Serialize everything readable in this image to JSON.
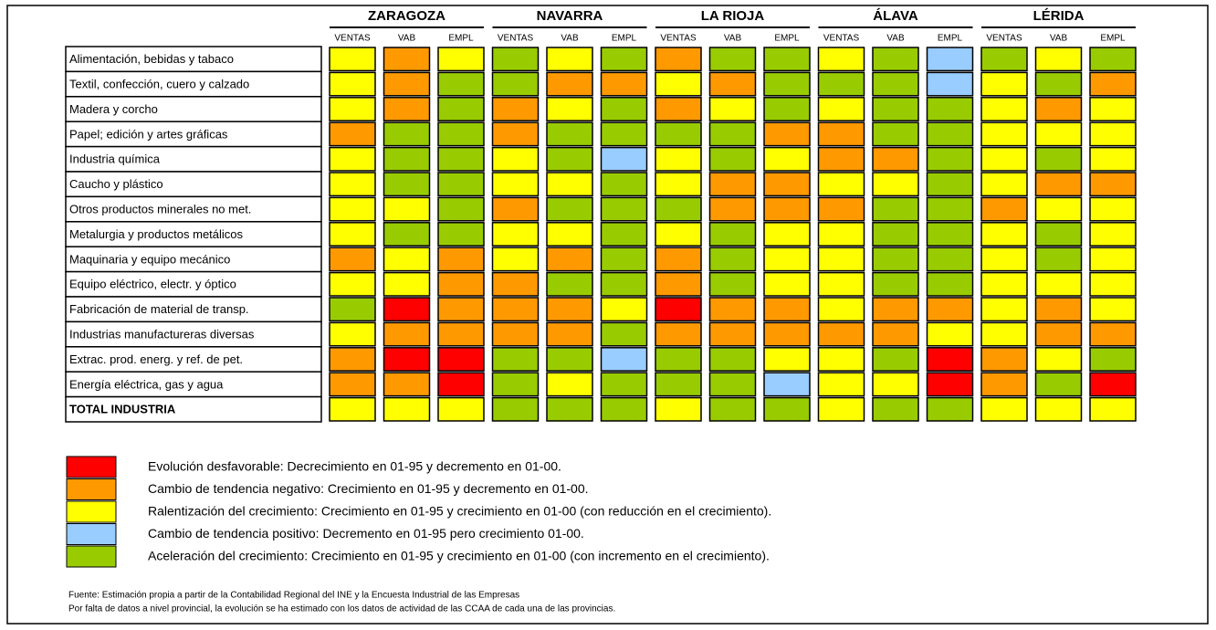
{
  "column_labels": [
    "VENTAS",
    "VAB",
    "EMPL"
  ],
  "regions": [
    "ZARAGOZA",
    "NAVARRA",
    "LA RIOJA",
    "ÁLAVA",
    "LÉRIDA"
  ],
  "rows": [
    {
      "label": "Alimentación, bebidas y tabaco",
      "cells": [
        "#ffff00",
        "#ff9900",
        "#ffff00",
        "#99cc00",
        "#ffff00",
        "#99cc00",
        "#ff9900",
        "#99cc00",
        "#99cc00",
        "#ffff00",
        "#99cc00",
        "#99ccff",
        "#99cc00",
        "#ffff00",
        "#99cc00"
      ]
    },
    {
      "label": "Textil, confección, cuero y calzado",
      "cells": [
        "#ffff00",
        "#ff9900",
        "#99cc00",
        "#99cc00",
        "#ff9900",
        "#ff9900",
        "#ffff00",
        "#ff9900",
        "#99cc00",
        "#99cc00",
        "#99cc00",
        "#99ccff",
        "#ffff00",
        "#99cc00",
        "#ff9900"
      ]
    },
    {
      "label": "Madera y corcho",
      "cells": [
        "#ffff00",
        "#ff9900",
        "#99cc00",
        "#ff9900",
        "#ffff00",
        "#99cc00",
        "#ff9900",
        "#ffff00",
        "#99cc00",
        "#ffff00",
        "#99cc00",
        "#99cc00",
        "#ffff00",
        "#ff9900",
        "#ffff00"
      ]
    },
    {
      "label": "Papel; edición y artes gráficas",
      "cells": [
        "#ff9900",
        "#99cc00",
        "#99cc00",
        "#ff9900",
        "#99cc00",
        "#99cc00",
        "#99cc00",
        "#99cc00",
        "#ff9900",
        "#ff9900",
        "#99cc00",
        "#99cc00",
        "#ffff00",
        "#ffff00",
        "#ffff00"
      ]
    },
    {
      "label": "Industria química",
      "cells": [
        "#ffff00",
        "#99cc00",
        "#99cc00",
        "#ffff00",
        "#99cc00",
        "#99ccff",
        "#ffff00",
        "#99cc00",
        "#ffff00",
        "#ff9900",
        "#ff9900",
        "#99cc00",
        "#ffff00",
        "#99cc00",
        "#ffff00"
      ]
    },
    {
      "label": "Caucho y plástico",
      "cells": [
        "#ffff00",
        "#99cc00",
        "#99cc00",
        "#ffff00",
        "#ffff00",
        "#99cc00",
        "#ffff00",
        "#ff9900",
        "#ff9900",
        "#ffff00",
        "#ffff00",
        "#99cc00",
        "#ffff00",
        "#ff9900",
        "#ff9900"
      ]
    },
    {
      "label": "Otros productos minerales no met.",
      "cells": [
        "#ffff00",
        "#ffff00",
        "#99cc00",
        "#ff9900",
        "#99cc00",
        "#99cc00",
        "#99cc00",
        "#ff9900",
        "#ff9900",
        "#ff9900",
        "#99cc00",
        "#99cc00",
        "#ff9900",
        "#ffff00",
        "#ffff00"
      ]
    },
    {
      "label": "Metalurgia y productos metálicos",
      "cells": [
        "#ffff00",
        "#99cc00",
        "#99cc00",
        "#ffff00",
        "#ffff00",
        "#99cc00",
        "#ffff00",
        "#99cc00",
        "#ffff00",
        "#ffff00",
        "#99cc00",
        "#99cc00",
        "#ffff00",
        "#99cc00",
        "#ffff00"
      ]
    },
    {
      "label": "Maquinaria y equipo mecánico",
      "cells": [
        "#ff9900",
        "#ffff00",
        "#ff9900",
        "#ffff00",
        "#ff9900",
        "#99cc00",
        "#ff9900",
        "#99cc00",
        "#ffff00",
        "#ffff00",
        "#99cc00",
        "#99cc00",
        "#ffff00",
        "#99cc00",
        "#ffff00"
      ]
    },
    {
      "label": "Equipo eléctrico, electr. y óptico",
      "cells": [
        "#ffff00",
        "#ffff00",
        "#ff9900",
        "#ff9900",
        "#99cc00",
        "#99cc00",
        "#ff9900",
        "#99cc00",
        "#ffff00",
        "#ffff00",
        "#99cc00",
        "#99cc00",
        "#ffff00",
        "#ffff00",
        "#ffff00"
      ]
    },
    {
      "label": "Fabricación de material de transp.",
      "cells": [
        "#99cc00",
        "#ff0000",
        "#ff9900",
        "#ff9900",
        "#ff9900",
        "#ffff00",
        "#ff0000",
        "#ff9900",
        "#ff9900",
        "#ffff00",
        "#ff9900",
        "#ff9900",
        "#ffff00",
        "#ff9900",
        "#ffff00"
      ]
    },
    {
      "label": "Industrias manufactureras diversas",
      "cells": [
        "#ffff00",
        "#ff9900",
        "#ff9900",
        "#ff9900",
        "#ff9900",
        "#99cc00",
        "#ff9900",
        "#ff9900",
        "#ff9900",
        "#ff9900",
        "#ff9900",
        "#ffff00",
        "#ffff00",
        "#ff9900",
        "#ff9900"
      ]
    },
    {
      "label": "Extrac. prod. energ. y ref. de pet.",
      "cells": [
        "#ff9900",
        "#ff0000",
        "#ff0000",
        "#99cc00",
        "#99cc00",
        "#99ccff",
        "#99cc00",
        "#99cc00",
        "#ffff00",
        "#ffff00",
        "#99cc00",
        "#ff0000",
        "#ff9900",
        "#ffff00",
        "#99cc00"
      ]
    },
    {
      "label": "Energía eléctrica, gas y agua",
      "cells": [
        "#ff9900",
        "#ff9900",
        "#ff0000",
        "#99cc00",
        "#ffff00",
        "#99cc00",
        "#99cc00",
        "#99cc00",
        "#99ccff",
        "#ffff00",
        "#ffff00",
        "#ff0000",
        "#ff9900",
        "#99cc00",
        "#ff0000"
      ]
    },
    {
      "label": "TOTAL INDUSTRIA",
      "bold": true,
      "cells": [
        "#ffff00",
        "#ffff00",
        "#ffff00",
        "#99cc00",
        "#99cc00",
        "#99cc00",
        "#ffff00",
        "#99cc00",
        "#99cc00",
        "#ffff00",
        "#99cc00",
        "#99cc00",
        "#ffff00",
        "#ffff00",
        "#ffff00"
      ]
    }
  ],
  "legend": [
    {
      "color": "#ff0000",
      "text": "Evolución desfavorable: Decrecimiento en 01-95 y decremento en 01-00."
    },
    {
      "color": "#ff9900",
      "text": "Cambio de tendencia negativo: Crecimiento en 01-95 y decremento en 01-00."
    },
    {
      "color": "#ffff00",
      "text": "Ralentización del crecimiento: Crecimiento en 01-95 y crecimiento en 01-00 (con reducción en el crecimiento)."
    },
    {
      "color": "#99ccff",
      "text": "Cambio de tendencia positivo: Decremento en 01-95 pero crecimiento 01-00."
    },
    {
      "color": "#99cc00",
      "text": "Aceleración del crecimiento: Crecimiento en 01-95 y crecimiento en 01-00 (con incremento en el crecimiento)."
    }
  ],
  "notes": [
    "Fuente: Estimación propia a partir de la Contabilidad Regional del INE y la Encuesta Industrial de las Empresas",
    "Por falta de datos a nivel provincial, la evolución se ha estimado con los datos de actividad de las CCAA de cada una de las provincias."
  ]
}
